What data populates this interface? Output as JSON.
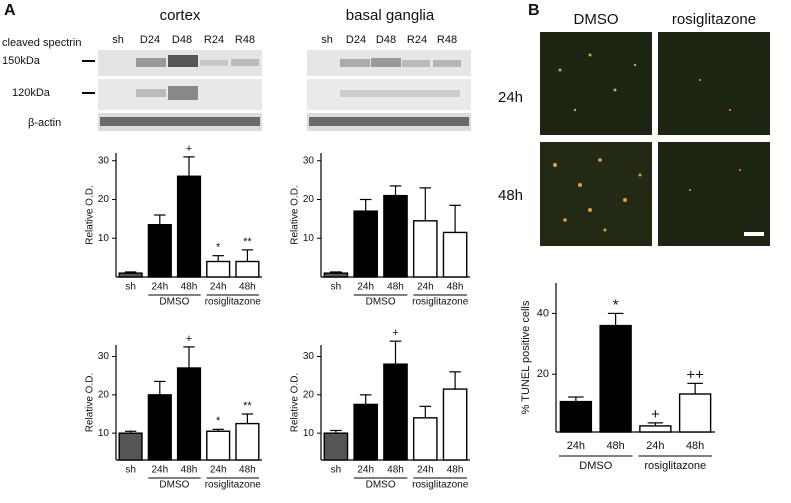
{
  "figure": {
    "panel_a": "A",
    "panel_b": "B",
    "blot_titles": [
      "cortex",
      "basal ganglia"
    ],
    "blot_row_label": "cleaved spectrin",
    "bands": [
      "150kDa",
      "120kDa",
      "β-actin"
    ],
    "lanes": [
      "sh",
      "D24",
      "D48",
      "R24",
      "R48"
    ],
    "micrograph_columns": [
      "DMSO",
      "rosiglitazone"
    ],
    "micrograph_rows": [
      "24h",
      "48h"
    ]
  },
  "chart_data": [
    {
      "type": "bar",
      "y_label": "Relative O.D.",
      "ylim": [
        0,
        32
      ],
      "yticks": [
        10,
        20,
        30
      ],
      "categories": [
        "sh",
        "24h",
        "48h",
        "24h",
        "48h"
      ],
      "category_groups": [
        null,
        "DMSO",
        "DMSO",
        "rosiglitazone",
        "rosiglitazone"
      ],
      "values": [
        1,
        13.5,
        26,
        4,
        4
      ],
      "errors": [
        0.3,
        2.5,
        5,
        1.5,
        3
      ],
      "colors": [
        "#555555",
        "#000000",
        "#000000",
        "#ffffff",
        "#ffffff"
      ],
      "annotations": [
        null,
        null,
        "+",
        "*",
        "**"
      ]
    },
    {
      "type": "bar",
      "y_label": "Relative O.D.",
      "ylim": [
        0,
        32
      ],
      "yticks": [
        10,
        20,
        30
      ],
      "categories": [
        "sh",
        "24h",
        "48h",
        "24h",
        "48h"
      ],
      "category_groups": [
        null,
        "DMSO",
        "DMSO",
        "rosiglitazone",
        "rosiglitazone"
      ],
      "values": [
        1,
        17,
        21,
        14.5,
        11.5
      ],
      "errors": [
        0.3,
        3,
        2.5,
        8.5,
        7
      ],
      "colors": [
        "#555555",
        "#000000",
        "#000000",
        "#ffffff",
        "#ffffff"
      ],
      "annotations": [
        null,
        null,
        null,
        null,
        null
      ]
    },
    {
      "type": "bar",
      "y_label": "Relative O.D.",
      "ylim": [
        3,
        33
      ],
      "yticks": [
        10,
        20,
        30
      ],
      "categories": [
        "sh",
        "24h",
        "48h",
        "24h",
        "48h"
      ],
      "category_groups": [
        null,
        "DMSO",
        "DMSO",
        "rosiglitazone",
        "rosiglitazone"
      ],
      "values": [
        10,
        20,
        27,
        10.5,
        12.5
      ],
      "errors": [
        0.5,
        3.5,
        5.5,
        0.5,
        2.5
      ],
      "colors": [
        "#555555",
        "#000000",
        "#000000",
        "#ffffff",
        "#ffffff"
      ],
      "annotations": [
        null,
        null,
        "+",
        "*",
        "**"
      ]
    },
    {
      "type": "bar",
      "y_label": "Relative O.D.",
      "ylim": [
        3,
        33
      ],
      "yticks": [
        10,
        20,
        30
      ],
      "categories": [
        "sh",
        "24h",
        "48h",
        "24h",
        "48h"
      ],
      "category_groups": [
        null,
        "DMSO",
        "DMSO",
        "rosiglitazone",
        "rosiglitazone"
      ],
      "values": [
        10,
        17.5,
        28,
        14,
        21.5
      ],
      "errors": [
        0.7,
        2.5,
        6,
        3,
        4.5
      ],
      "colors": [
        "#555555",
        "#000000",
        "#000000",
        "#ffffff",
        "#ffffff"
      ],
      "annotations": [
        null,
        null,
        "+",
        null,
        null
      ]
    },
    {
      "type": "bar",
      "y_label": "% TUNEL positive cells",
      "ylim": [
        1,
        50
      ],
      "yticks": [
        20,
        40
      ],
      "categories": [
        "24h",
        "48h",
        "24h",
        "48h"
      ],
      "category_groups": [
        "DMSO",
        "DMSO",
        "rosiglitazone",
        "rosiglitazone"
      ],
      "values": [
        11,
        36,
        3,
        13.5
      ],
      "errors": [
        1.5,
        4,
        1,
        3.5
      ],
      "colors": [
        "#000000",
        "#000000",
        "#ffffff",
        "#ffffff"
      ],
      "annotations": [
        null,
        "*",
        "+",
        "++"
      ]
    }
  ]
}
